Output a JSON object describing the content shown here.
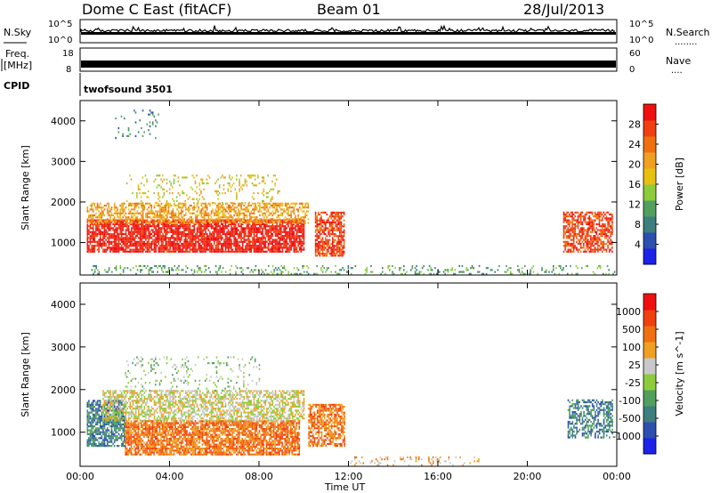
{
  "header": {
    "station": "Dome C East (fitACF)",
    "beam": "Beam 01",
    "date": "28/Jul/2013"
  },
  "top_strip": {
    "nsky_label": "N.Sky",
    "nsearch_label": "N.Search",
    "nsearch_dots": "........",
    "freq_label_line1": "Freq.",
    "freq_label_line2": "[MHz]",
    "nave_label": "Nave",
    "nave_dots": "....",
    "cpid_label": "CPID",
    "cpid_value": "twofsound 3501",
    "nsky_ticks": [
      "10^5",
      "10^0"
    ],
    "nsearch_ticks": [
      "10^5",
      "10^0"
    ],
    "freq_ticks": [
      "18",
      "8"
    ],
    "nave_ticks": [
      "60",
      "0"
    ]
  },
  "chart_data": [
    {
      "type": "heatmap",
      "panel": "power",
      "ylabel": "Slant Range [km]",
      "xlabel": "",
      "xlim_hours": [
        0,
        24
      ],
      "ylim_km": [
        200,
        4500
      ],
      "yticks": [
        1000,
        2000,
        3000,
        4000
      ],
      "colorbar": {
        "label": "Power [dB]",
        "ticks": [
          "4",
          "8",
          "12",
          "16",
          "20",
          "24",
          "28"
        ],
        "colors": [
          "#1c22e8",
          "#2c4fb0",
          "#3d7f7f",
          "#52a05e",
          "#8ccc3a",
          "#e8c010",
          "#f0a020",
          "#f07010",
          "#f04010",
          "#f01010"
        ]
      },
      "regions": [
        {
          "t0": 0.3,
          "t1": 10.0,
          "r0": 800,
          "r1": 1600,
          "level": 9,
          "density": 0.8
        },
        {
          "t0": 0.3,
          "t1": 10.2,
          "r0": 1500,
          "r1": 2000,
          "level": 6,
          "density": 0.55
        },
        {
          "t0": 2.0,
          "t1": 9.0,
          "r0": 2000,
          "r1": 2700,
          "level": 5,
          "density": 0.15
        },
        {
          "t0": 10.5,
          "t1": 11.8,
          "r0": 700,
          "r1": 1800,
          "level": 8,
          "density": 0.7
        },
        {
          "t0": 21.6,
          "t1": 23.8,
          "r0": 800,
          "r1": 1800,
          "level": 8,
          "density": 0.65
        },
        {
          "t0": 0.5,
          "t1": 23.9,
          "r0": 250,
          "r1": 450,
          "level": 3,
          "density": 0.18
        },
        {
          "t0": 1.5,
          "t1": 3.5,
          "r0": 3600,
          "r1": 4300,
          "level": 2,
          "density": 0.08
        }
      ]
    },
    {
      "type": "heatmap",
      "panel": "velocity",
      "ylabel": "Slant Range [km]",
      "xlabel": "Time UT",
      "xlim_hours": [
        0,
        24
      ],
      "ylim_km": [
        200,
        4500
      ],
      "yticks": [
        1000,
        2000,
        3000,
        4000
      ],
      "xtick_labels": [
        "00:00",
        "04:00",
        "08:00",
        "12:00",
        "16:00",
        "20:00",
        "00:00"
      ],
      "xtick_hours": [
        0,
        4,
        8,
        12,
        16,
        20,
        24
      ],
      "colorbar": {
        "label": "Velocity [m s^-1]",
        "ticks": [
          "1000",
          "500",
          "100",
          "25",
          "-25",
          "-100",
          "-500",
          "-1000"
        ],
        "colors": [
          "#1c22e8",
          "#2c4fb0",
          "#3d7f7f",
          "#52a05e",
          "#8ccc3a",
          "#c8c8c8",
          "#f0a020",
          "#f07010",
          "#f04010",
          "#f01010"
        ]
      },
      "regions": [
        {
          "t0": 0.3,
          "t1": 2.0,
          "r0": 700,
          "r1": 1800,
          "level": 2,
          "density": 0.75
        },
        {
          "t0": 2.0,
          "t1": 9.8,
          "r0": 500,
          "r1": 1300,
          "level": 7,
          "density": 0.8
        },
        {
          "t0": 1.0,
          "t1": 10.0,
          "r0": 1300,
          "r1": 2000,
          "level": 5,
          "density": 0.6
        },
        {
          "t0": 10.2,
          "t1": 11.8,
          "r0": 700,
          "r1": 1700,
          "level": 7,
          "density": 0.65
        },
        {
          "t0": 21.8,
          "t1": 23.8,
          "r0": 900,
          "r1": 1800,
          "level": 2,
          "density": 0.55
        },
        {
          "t0": 12.0,
          "t1": 18.0,
          "r0": 250,
          "r1": 450,
          "level": 6,
          "density": 0.15
        },
        {
          "t0": 2.0,
          "t1": 8.0,
          "r0": 2000,
          "r1": 2800,
          "level": 4,
          "density": 0.12
        }
      ]
    }
  ]
}
